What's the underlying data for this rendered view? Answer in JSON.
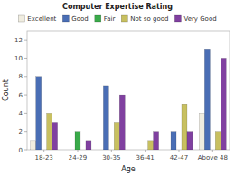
{
  "chart_data": {
    "type": "bar",
    "title": "Computer Expertise Rating",
    "xlabel": "Age",
    "ylabel": "Count",
    "categories": [
      "18-23",
      "24-29",
      "30-35",
      "36-41",
      "42-47",
      "Above 48"
    ],
    "series": [
      {
        "name": "Excellent",
        "color": "#f0ede0",
        "values": [
          1,
          0,
          0,
          0,
          0,
          4
        ]
      },
      {
        "name": "Good",
        "color": "#4a6eb5",
        "values": [
          8,
          0,
          7,
          0,
          2,
          11
        ]
      },
      {
        "name": "Fair",
        "color": "#3aaa4a",
        "values": [
          0,
          2,
          0,
          0,
          0,
          0
        ]
      },
      {
        "name": "Not so good",
        "color": "#c8c060",
        "values": [
          4,
          0,
          3,
          1,
          5,
          2
        ]
      },
      {
        "name": "Very Good",
        "color": "#8040a0",
        "values": [
          3,
          1,
          6,
          2,
          2,
          10
        ]
      }
    ],
    "ylim": [
      0,
      13
    ],
    "yticks": [
      0,
      2,
      4,
      6,
      8,
      10,
      12
    ],
    "grid": false,
    "legend": "top"
  }
}
